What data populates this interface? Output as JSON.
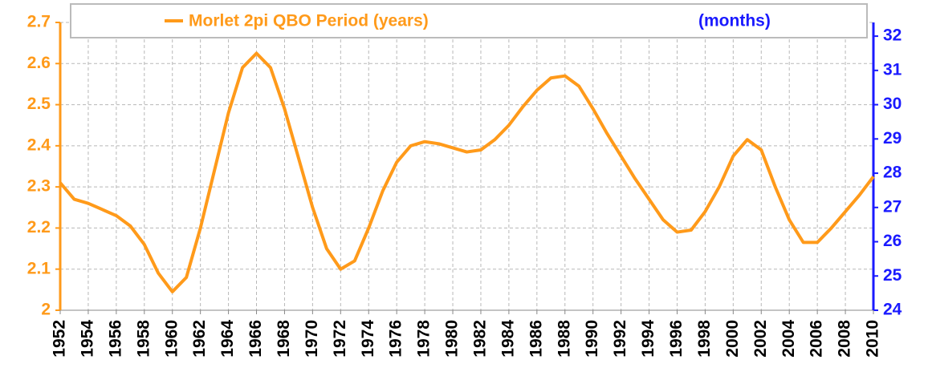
{
  "chart_data": {
    "type": "line",
    "x": [
      1952,
      1953,
      1954,
      1955,
      1956,
      1957,
      1958,
      1959,
      1960,
      1961,
      1962,
      1963,
      1964,
      1965,
      1966,
      1967,
      1968,
      1969,
      1970,
      1971,
      1972,
      1973,
      1974,
      1975,
      1976,
      1977,
      1978,
      1979,
      1980,
      1981,
      1982,
      1983,
      1984,
      1985,
      1986,
      1987,
      1988,
      1989,
      1990,
      1991,
      1992,
      1993,
      1994,
      1995,
      1996,
      1997,
      1998,
      1999,
      2000,
      2001,
      2002,
      2003,
      2004,
      2005,
      2006,
      2007,
      2008,
      2009,
      2010
    ],
    "series": [
      {
        "name": "Morlet 2pi QBO Period (years)",
        "color": "#ff9a1a",
        "values": [
          2.31,
          2.27,
          2.26,
          2.245,
          2.23,
          2.205,
          2.16,
          2.09,
          2.045,
          2.08,
          2.2,
          2.34,
          2.48,
          2.59,
          2.625,
          2.59,
          2.49,
          2.37,
          2.25,
          2.15,
          2.1,
          2.12,
          2.2,
          2.29,
          2.36,
          2.4,
          2.41,
          2.405,
          2.395,
          2.385,
          2.39,
          2.415,
          2.45,
          2.495,
          2.535,
          2.565,
          2.57,
          2.545,
          2.49,
          2.43,
          2.375,
          2.32,
          2.27,
          2.22,
          2.19,
          2.195,
          2.24,
          2.3,
          2.375,
          2.415,
          2.39,
          2.3,
          2.22,
          2.165,
          2.165,
          2.2,
          2.24,
          2.28,
          2.325
        ]
      }
    ],
    "y2label": "(months)",
    "xlim": [
      1952,
      2010
    ],
    "xticks": [
      1952,
      1954,
      1956,
      1958,
      1960,
      1962,
      1964,
      1966,
      1968,
      1970,
      1972,
      1974,
      1976,
      1978,
      1980,
      1982,
      1984,
      1986,
      1988,
      1990,
      1992,
      1994,
      1996,
      1998,
      2000,
      2002,
      2004,
      2006,
      2008,
      2010
    ],
    "ylim": [
      2,
      2.7
    ],
    "yticks": [
      2,
      2.1,
      2.2,
      2.3,
      2.4,
      2.5,
      2.6,
      2.7
    ],
    "y2lim": [
      24,
      32.4
    ],
    "y2ticks": [
      24,
      25,
      26,
      27,
      28,
      29,
      30,
      31,
      32
    ],
    "grid": true
  }
}
